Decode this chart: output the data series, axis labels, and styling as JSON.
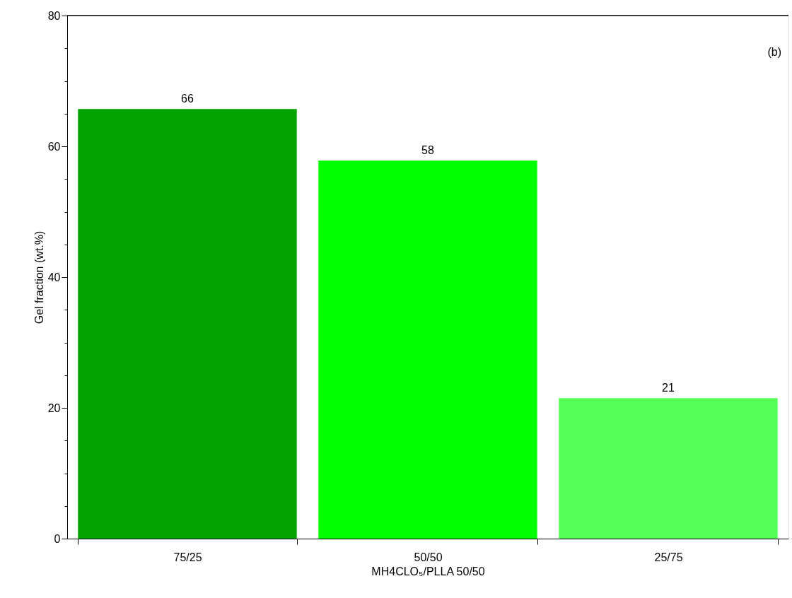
{
  "chart_data": {
    "type": "bar",
    "categories": [
      "75/25",
      "50/50",
      "25/75"
    ],
    "values": [
      65.7,
      57.8,
      21.5
    ],
    "colors": [
      "#00a300",
      "#00ff00",
      "#55ff55"
    ],
    "value_labels": [
      "66",
      "58",
      "21"
    ],
    "xlabel": "MH4CLO₅/PLLA 50/50",
    "ylabel": "Gel fraction (wt.%)",
    "ylim": [
      0,
      80
    ],
    "yticks": [
      0,
      {
        "value": 5,
        "label": null
      },
      {
        "value": 10,
        "label": null
      },
      {
        "value": 15,
        "label": null
      },
      20,
      {
        "value": 25,
        "label": null
      },
      {
        "value": 30,
        "label": null
      },
      {
        "value": 35,
        "label": null
      },
      40,
      {
        "value": 45,
        "label": null
      },
      {
        "value": 50,
        "label": null
      },
      {
        "value": 55,
        "label": null
      },
      60,
      {
        "value": 65,
        "label": null
      },
      {
        "value": 70,
        "label": null
      },
      {
        "value": 75,
        "label": null
      },
      80
    ],
    "annotations": [
      "(b)"
    ],
    "grid": false
  }
}
